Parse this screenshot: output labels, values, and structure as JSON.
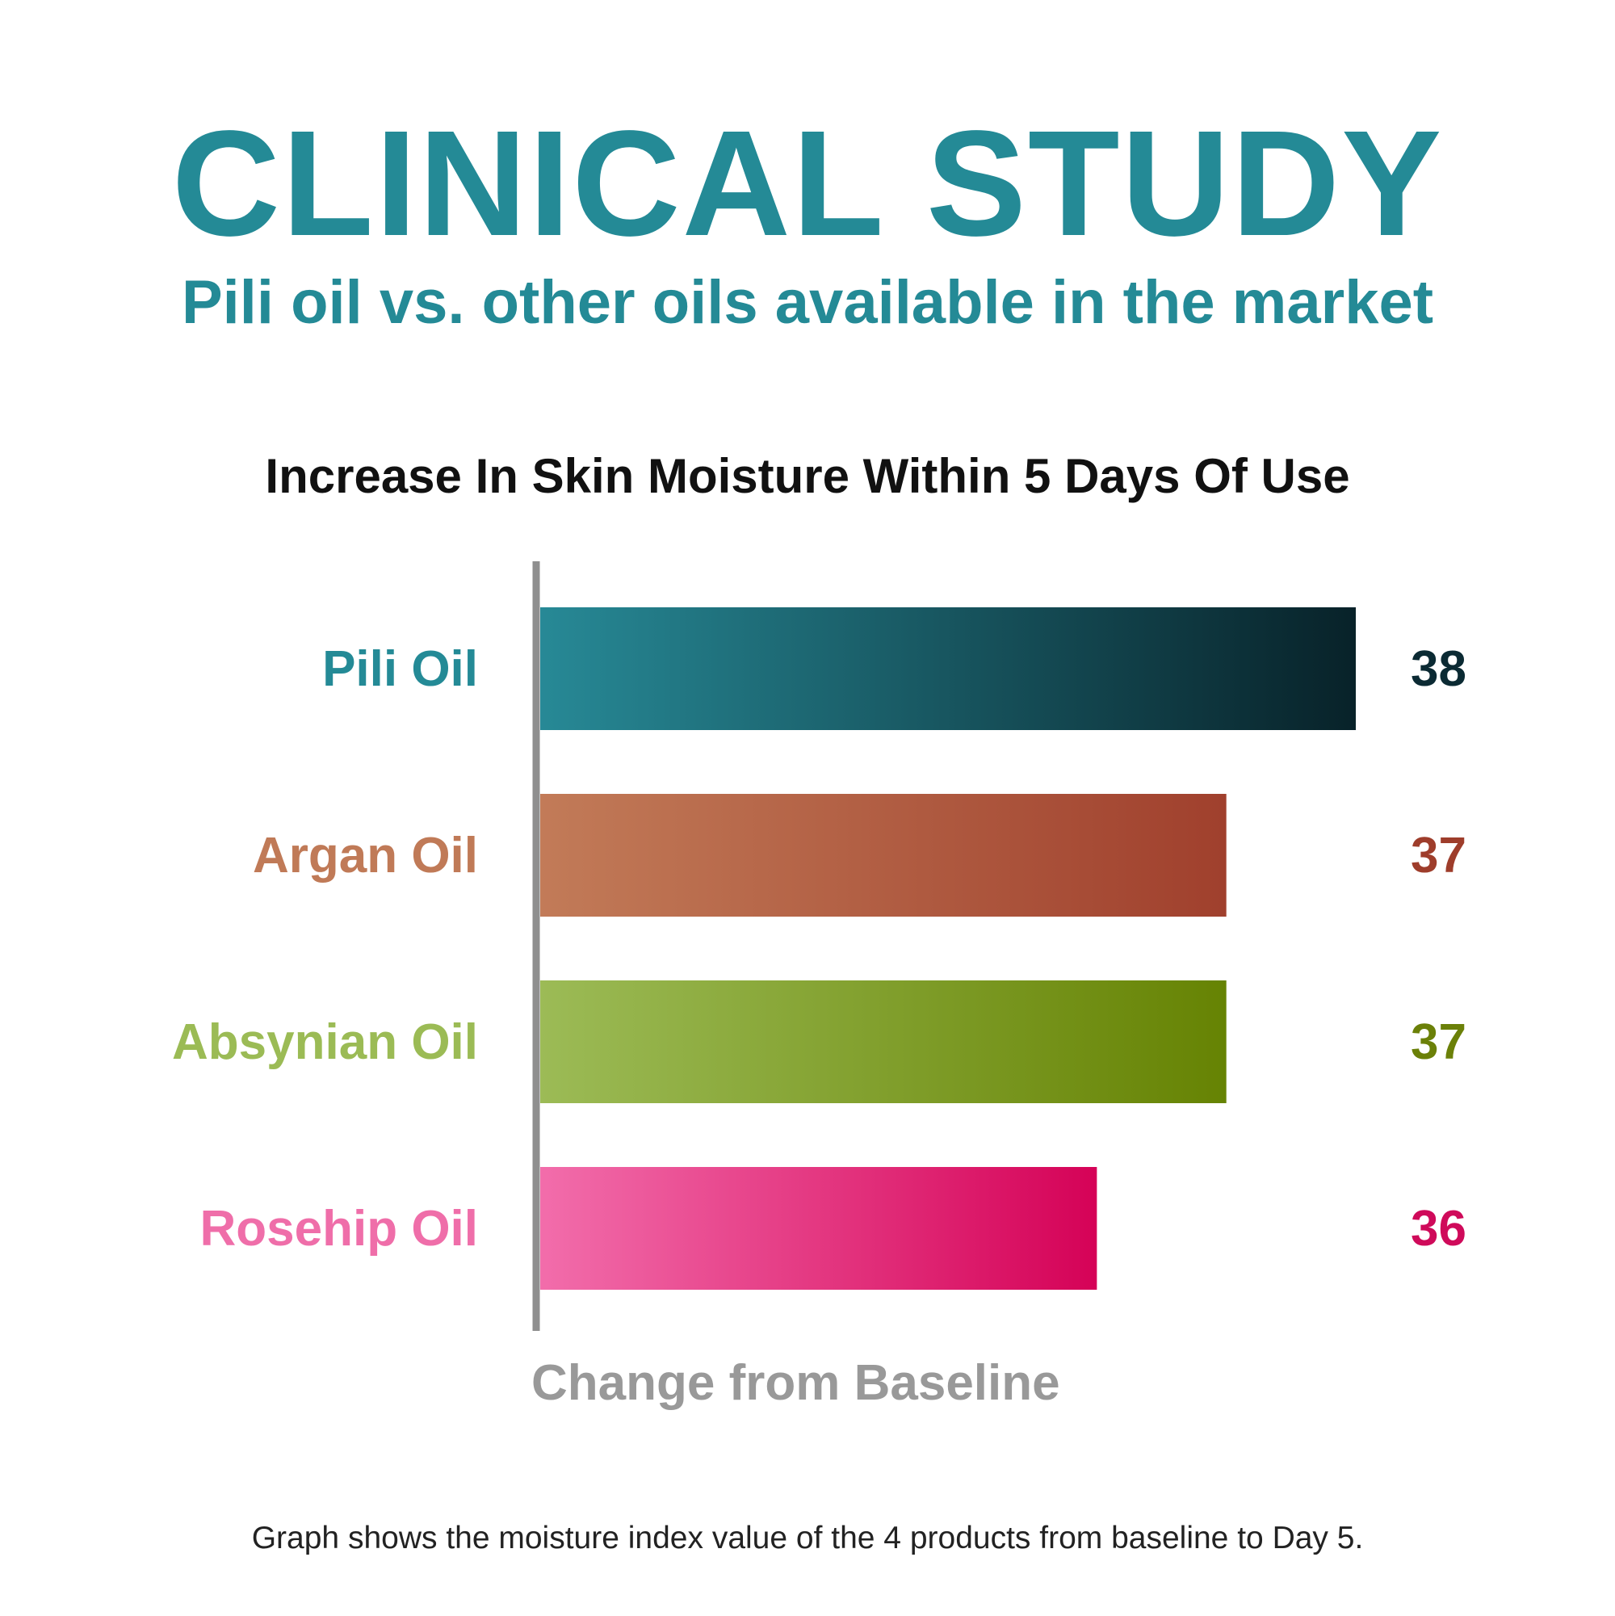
{
  "header": {
    "title": "CLINICAL STUDY",
    "subtitle": "Pili oil vs. other oils available in the market"
  },
  "chart_data": {
    "type": "bar",
    "orientation": "horizontal",
    "title": "Increase In Skin Moisture Within 5 Days Of Use",
    "xlabel": "Change from Baseline",
    "ylabel": "",
    "grid": false,
    "categories": [
      "Pili Oil",
      "Argan Oil",
      "Absynian Oil",
      "Rosehip Oil"
    ],
    "values": [
      38,
      37,
      37,
      36
    ],
    "value_labels": [
      "38",
      "37",
      "37",
      "36"
    ],
    "xlim": [
      31.7,
      38
    ],
    "colors": {
      "Pili Oil": {
        "label": "#248a96",
        "value": "#0b2a33",
        "gradient": [
          "#278996",
          "#082229"
        ]
      },
      "Argan Oil": {
        "label": "#c07a57",
        "value": "#9e3d2b",
        "gradient": [
          "#c27b58",
          "#a0402d"
        ]
      },
      "Absynian Oil": {
        "label": "#9bbb55",
        "value": "#6b8008",
        "gradient": [
          "#9cbb56",
          "#668303"
        ]
      },
      "Rosehip Oil": {
        "label": "#ef6ea9",
        "value": "#cf0a5a",
        "gradient": [
          "#f26dab",
          "#d50257"
        ]
      }
    }
  },
  "footnote": "Graph shows the moisture index value of the 4 products from baseline to Day 5."
}
